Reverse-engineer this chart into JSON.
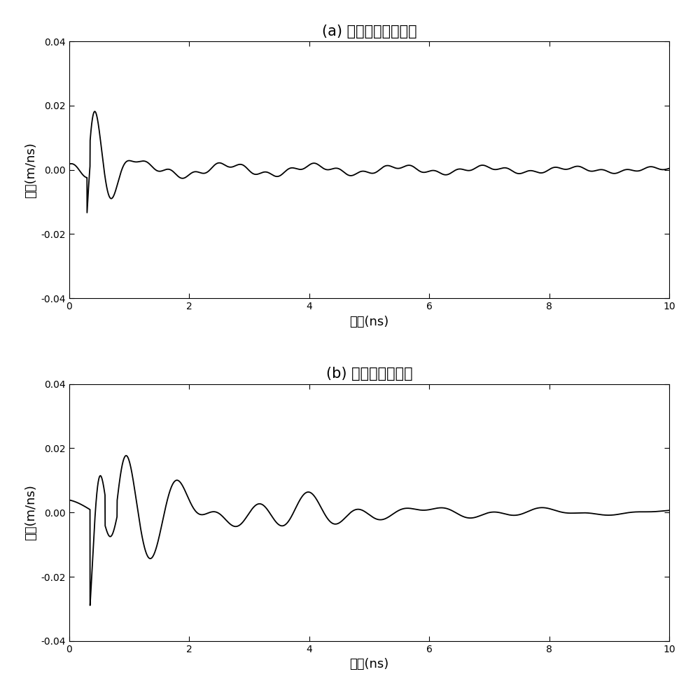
{
  "title_a": "(a) 椭圆偶极子传感器",
  "title_b": "(b) 对数周期传感器",
  "xlabel": "时间(ns)",
  "ylabel": "幅度(m/ns)",
  "xlim": [
    0,
    10
  ],
  "ylim": [
    -0.04,
    0.04
  ],
  "xticks": [
    0,
    2,
    4,
    6,
    8,
    10
  ],
  "yticks": [
    -0.04,
    -0.02,
    0,
    0.02,
    0.04
  ],
  "line_color": "#000000",
  "line_width": 1.3,
  "background_color": "#ffffff",
  "figsize": [
    10.0,
    9.93
  ],
  "dpi": 100
}
